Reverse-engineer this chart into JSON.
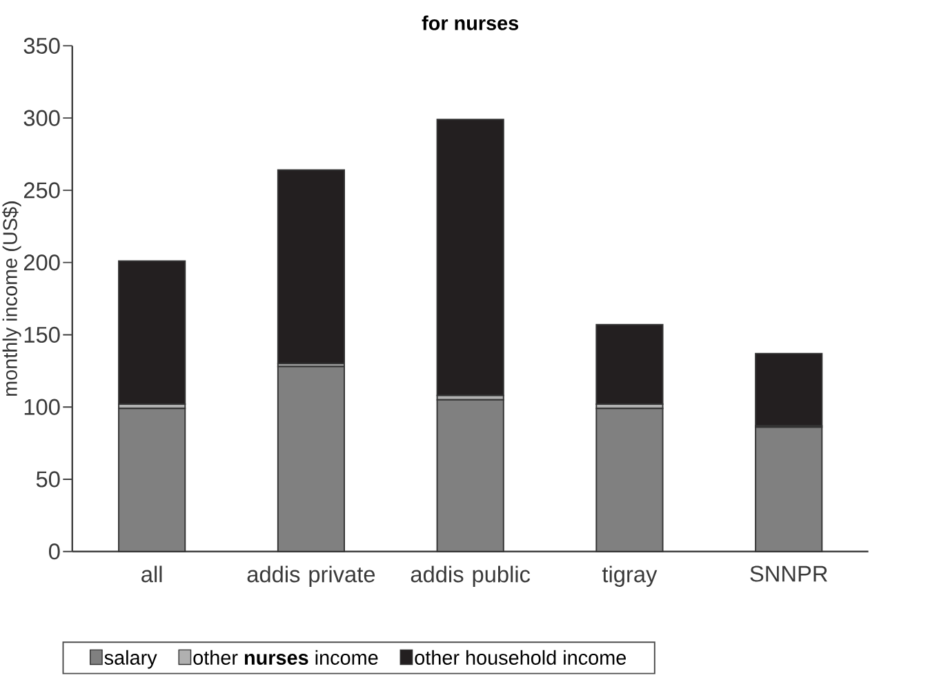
{
  "chart_data": {
    "type": "bar",
    "title": "for nurses",
    "ylabel": "monthly income (US$)",
    "categories": [
      "all",
      "addis private",
      "addis public",
      "tigray",
      "SNNPR"
    ],
    "stacked": true,
    "series": [
      {
        "name": "salary",
        "color": "#808080",
        "values": [
          99,
          128,
          105,
          99,
          86
        ]
      },
      {
        "name": "other **nurses** income",
        "color": "#b0b0b0",
        "values": [
          3,
          2,
          3,
          3,
          1
        ]
      },
      {
        "name": "other household income",
        "color": "#231f20",
        "values": [
          99,
          134,
          191,
          55,
          50
        ]
      }
    ],
    "ylim": [
      0,
      350
    ],
    "yticks": [
      0,
      50,
      100,
      150,
      200,
      250,
      300,
      350
    ],
    "legend": "bottom",
    "grid": false
  }
}
